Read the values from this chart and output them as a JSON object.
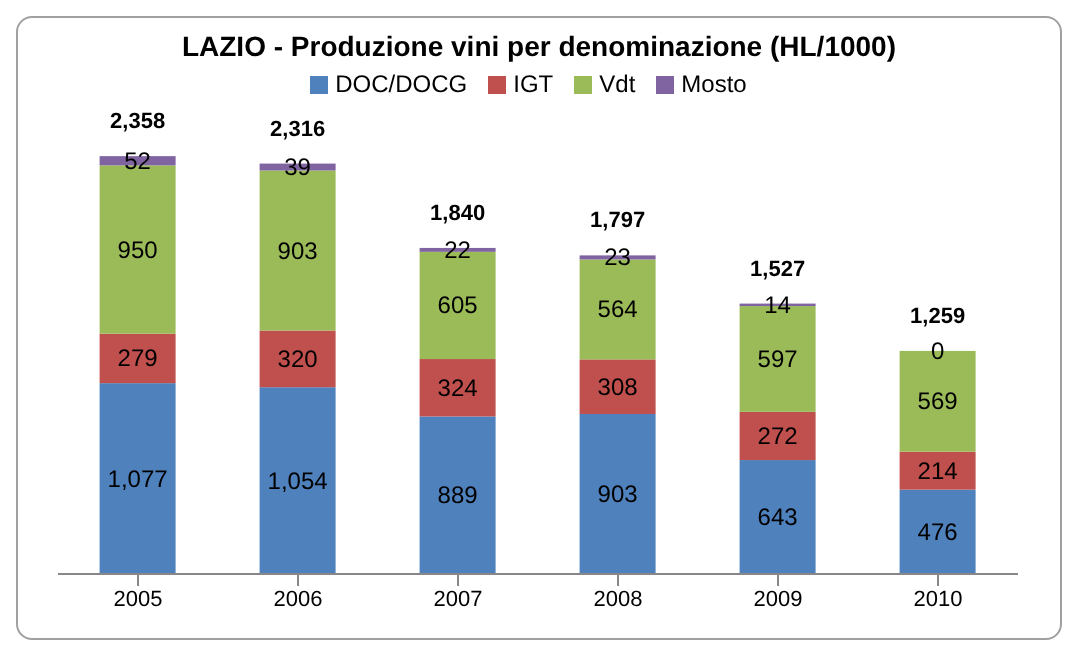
{
  "chart_data": {
    "type": "bar",
    "title": "LAZIO - Produzione vini per denominazione (HL/1000)",
    "categories": [
      "2005",
      "2006",
      "2007",
      "2008",
      "2009",
      "2010"
    ],
    "stacked": true,
    "legend": "top",
    "grid": false,
    "series": [
      {
        "name": "DOC/DOCG",
        "color": "#4f81bd",
        "values": [
          1077,
          1054,
          889,
          903,
          643,
          476
        ],
        "value_labels": [
          "1,077",
          "1,054",
          "889",
          "903",
          "643",
          "476"
        ]
      },
      {
        "name": "IGT",
        "color": "#c0504d",
        "values": [
          279,
          320,
          324,
          308,
          272,
          214
        ],
        "value_labels": [
          "279",
          "320",
          "324",
          "308",
          "272",
          "214"
        ]
      },
      {
        "name": "Vdt",
        "color": "#9bbb59",
        "values": [
          950,
          903,
          605,
          564,
          597,
          569
        ],
        "value_labels": [
          "950",
          "903",
          "605",
          "564",
          "597",
          "569"
        ]
      },
      {
        "name": "Mosto",
        "color": "#8064a2",
        "values": [
          52,
          39,
          22,
          23,
          14,
          0
        ],
        "value_labels": [
          "52",
          "39",
          "22",
          "23",
          "14",
          "0"
        ]
      }
    ],
    "totals": [
      "2,358",
      "2,316",
      "1,840",
      "1,797",
      "1,527",
      "1,259"
    ]
  }
}
